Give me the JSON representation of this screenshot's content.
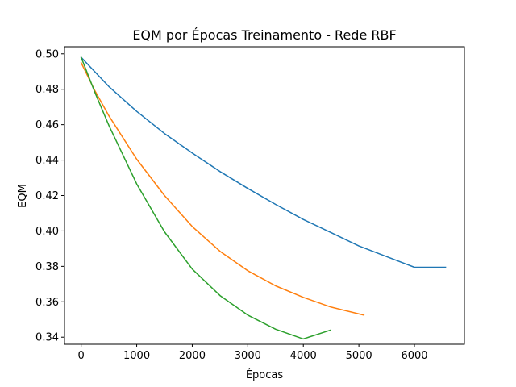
{
  "chart_data": {
    "type": "line",
    "title": "EQM por Épocas Treinamento - Rede RBF",
    "xlabel": "Épocas",
    "ylabel": "EQM",
    "xlim": [
      -300,
      6900
    ],
    "ylim": [
      0.336,
      0.504
    ],
    "xticks": [
      0,
      1000,
      2000,
      3000,
      4000,
      5000,
      6000
    ],
    "yticks": [
      0.34,
      0.36,
      0.38,
      0.4,
      0.42,
      0.44,
      0.46,
      0.48,
      0.5
    ],
    "ytick_labels": [
      "0.34",
      "0.36",
      "0.38",
      "0.40",
      "0.42",
      "0.44",
      "0.46",
      "0.48",
      "0.50"
    ],
    "grid": false,
    "legend": "none",
    "series": [
      {
        "color": "#1f77b4",
        "x": [
          0,
          500,
          1000,
          1500,
          2000,
          2500,
          3000,
          3500,
          4000,
          4500,
          5000,
          5500,
          6000,
          6560
        ],
        "y": [
          0.498,
          0.4815,
          0.4675,
          0.455,
          0.444,
          0.4335,
          0.424,
          0.415,
          0.4065,
          0.399,
          0.3915,
          0.3855,
          0.3795,
          0.3795
        ]
      },
      {
        "color": "#ff7f0e",
        "x": [
          0,
          250,
          500,
          1000,
          1500,
          2000,
          2500,
          3000,
          3500,
          4000,
          4500,
          5090
        ],
        "y": [
          0.495,
          0.479,
          0.465,
          0.4405,
          0.42,
          0.4025,
          0.3885,
          0.3775,
          0.369,
          0.3625,
          0.357,
          0.3525
        ]
      },
      {
        "color": "#2ca02c",
        "x": [
          0,
          250,
          500,
          1000,
          1500,
          2000,
          2500,
          3000,
          3500,
          4000,
          4490
        ],
        "y": [
          0.498,
          0.478,
          0.4595,
          0.4265,
          0.3995,
          0.3785,
          0.3635,
          0.3525,
          0.3445,
          0.339,
          0.344
        ]
      }
    ]
  }
}
